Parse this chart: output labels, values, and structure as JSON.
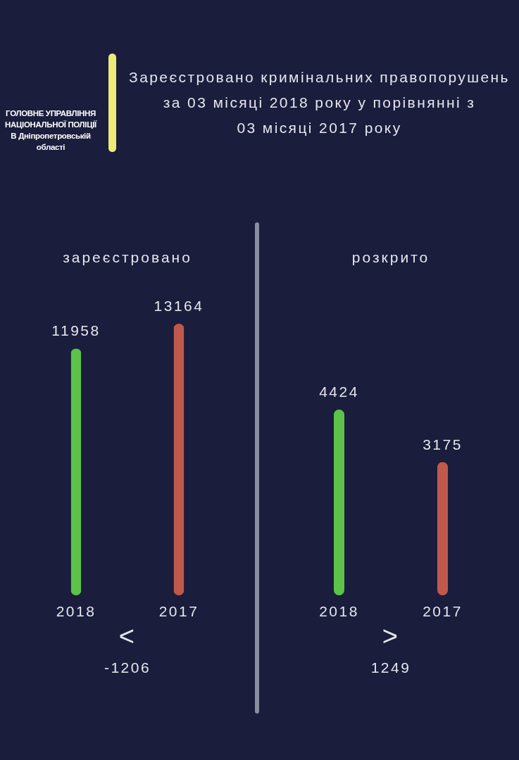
{
  "chart_data": [
    {
      "type": "other",
      "title": "Зареєстровано кримінальних правопорушень\nза 03 місяці 2018 року у порівнянні з\n03 місяці 2017 року",
      "annotations": [
        "ГОЛОВНЕ УПРАВЛІННЯ\nНАЦІОНАЛЬНОЇ ПОЛІЦІЇ\nВ Дніпропетровській\nобласті"
      ]
    },
    {
      "type": "bar",
      "title": "зареєстровано",
      "categories": [
        "2018",
        "2017"
      ],
      "values": [
        11958,
        13164
      ],
      "colors": [
        "#5cc24a",
        "#c0594b"
      ],
      "data_labels": true,
      "annotations": [
        "<",
        "-1206"
      ]
    },
    {
      "type": "bar",
      "title": "розкрито",
      "categories": [
        "2018",
        "2017"
      ],
      "values": [
        4424,
        3175
      ],
      "colors": [
        "#5cc24a",
        "#c0594b"
      ],
      "data_labels": true,
      "annotations": [
        ">",
        "1249"
      ]
    }
  ]
}
